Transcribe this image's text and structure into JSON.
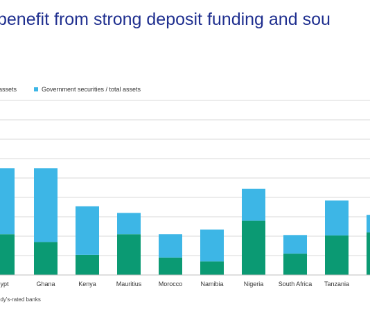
{
  "title": "benefit from strong deposit funding and sou",
  "legend": {
    "series_a_label": "assets",
    "series_b_label": "Government securities / total assets"
  },
  "source": "ody's-rated banks",
  "colors": {
    "series_a": "#0b9a73",
    "series_b": "#3db6e6",
    "grid": "#d9d9d9"
  },
  "chart_data": {
    "type": "bar",
    "stacked": true,
    "categories": [
      "gypt",
      "Ghana",
      "Kenya",
      "Mauritius",
      "Morocco",
      "Namibia",
      "Nigeria",
      "South Africa",
      "Tanzania",
      ""
    ],
    "series": [
      {
        "name": "assets",
        "values": [
          1.05,
          0.85,
          0.52,
          1.05,
          0.45,
          0.35,
          1.4,
          0.55,
          1.02,
          1.1
        ]
      },
      {
        "name": "Government securities / total assets",
        "values": [
          1.7,
          1.9,
          1.25,
          0.55,
          0.6,
          0.82,
          0.82,
          0.48,
          0.9,
          0.45
        ]
      }
    ],
    "ylim": [
      0,
      4.5
    ],
    "grid": true,
    "ylabel": "",
    "xlabel": ""
  }
}
